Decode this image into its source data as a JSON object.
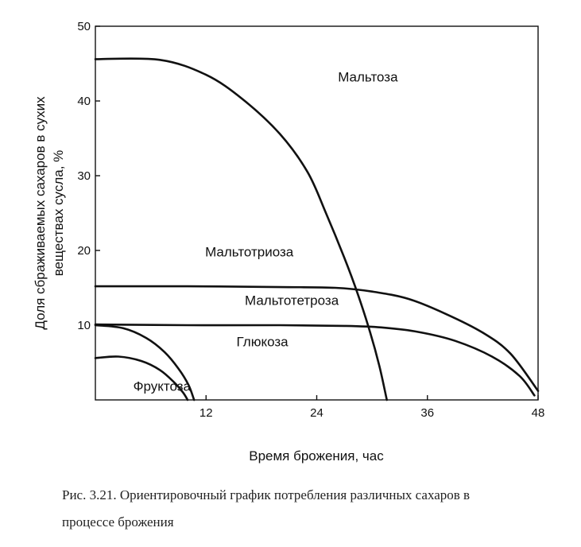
{
  "chart_data": {
    "type": "line",
    "xlabel": "Время брожения, час",
    "ylabel_lines": [
      "Доля сбраживаемых сахаров в сухих",
      "веществах сусла, %"
    ],
    "xlim": [
      0,
      48
    ],
    "ylim": [
      0,
      50
    ],
    "x_ticks": [
      12,
      24,
      36,
      48
    ],
    "y_ticks": [
      10,
      20,
      30,
      40,
      50
    ],
    "grid": false,
    "legend": "none",
    "series": [
      {
        "name": "Мальтоза",
        "points": [
          [
            0,
            45.6
          ],
          [
            7,
            45.5
          ],
          [
            12,
            43.5
          ],
          [
            16,
            40.2
          ],
          [
            20,
            35.6
          ],
          [
            23,
            30.5
          ],
          [
            25,
            25
          ],
          [
            27,
            19
          ],
          [
            28.5,
            14
          ],
          [
            29.8,
            9
          ],
          [
            30.8,
            4.5
          ],
          [
            31.6,
            0
          ]
        ]
      },
      {
        "name": "Мальтотриоза",
        "points": [
          [
            0,
            15.2
          ],
          [
            10,
            15.2
          ],
          [
            20,
            15.1
          ],
          [
            26,
            15.0
          ],
          [
            30,
            14.5
          ],
          [
            34,
            13.5
          ],
          [
            38,
            11.5
          ],
          [
            42,
            9
          ],
          [
            45,
            6.2
          ],
          [
            48,
            1.2
          ]
        ]
      },
      {
        "name": "Мальтотетроза",
        "points": [
          [
            0,
            10.1
          ],
          [
            10,
            10.0
          ],
          [
            20,
            10.0
          ],
          [
            27,
            9.9
          ],
          [
            31,
            9.7
          ],
          [
            35,
            9.1
          ],
          [
            39,
            7.9
          ],
          [
            43,
            5.8
          ],
          [
            46,
            3.2
          ],
          [
            47.6,
            0.6
          ]
        ]
      },
      {
        "name": "Глюкоза",
        "points": [
          [
            0,
            10.0
          ],
          [
            3,
            9.6
          ],
          [
            5.5,
            8.3
          ],
          [
            7.5,
            6.4
          ],
          [
            9,
            4.2
          ],
          [
            10.1,
            2.0
          ],
          [
            10.7,
            0
          ]
        ]
      },
      {
        "name": "Фруктоза",
        "points": [
          [
            0,
            5.6
          ],
          [
            2.5,
            5.8
          ],
          [
            5,
            5.2
          ],
          [
            7,
            4.0
          ],
          [
            8.5,
            2.4
          ],
          [
            9.5,
            1.0
          ],
          [
            10,
            0
          ]
        ]
      }
    ],
    "series_labels": [
      {
        "text": "Мальтоза",
        "x": 26.3,
        "y": 42.6
      },
      {
        "text": "Мальтотриоза",
        "x": 11.9,
        "y": 19.2
      },
      {
        "text": "Мальтотетроза",
        "x": 16.2,
        "y": 12.7
      },
      {
        "text": "Глюкоза",
        "x": 15.3,
        "y": 7.2
      },
      {
        "text": "Фруктоза",
        "x": 4.1,
        "y": 1.2
      }
    ]
  },
  "caption": {
    "line1": "Рис. 3.21. Ориентировочный график потребления различных сахаров в",
    "line2": "процессе брожения"
  }
}
